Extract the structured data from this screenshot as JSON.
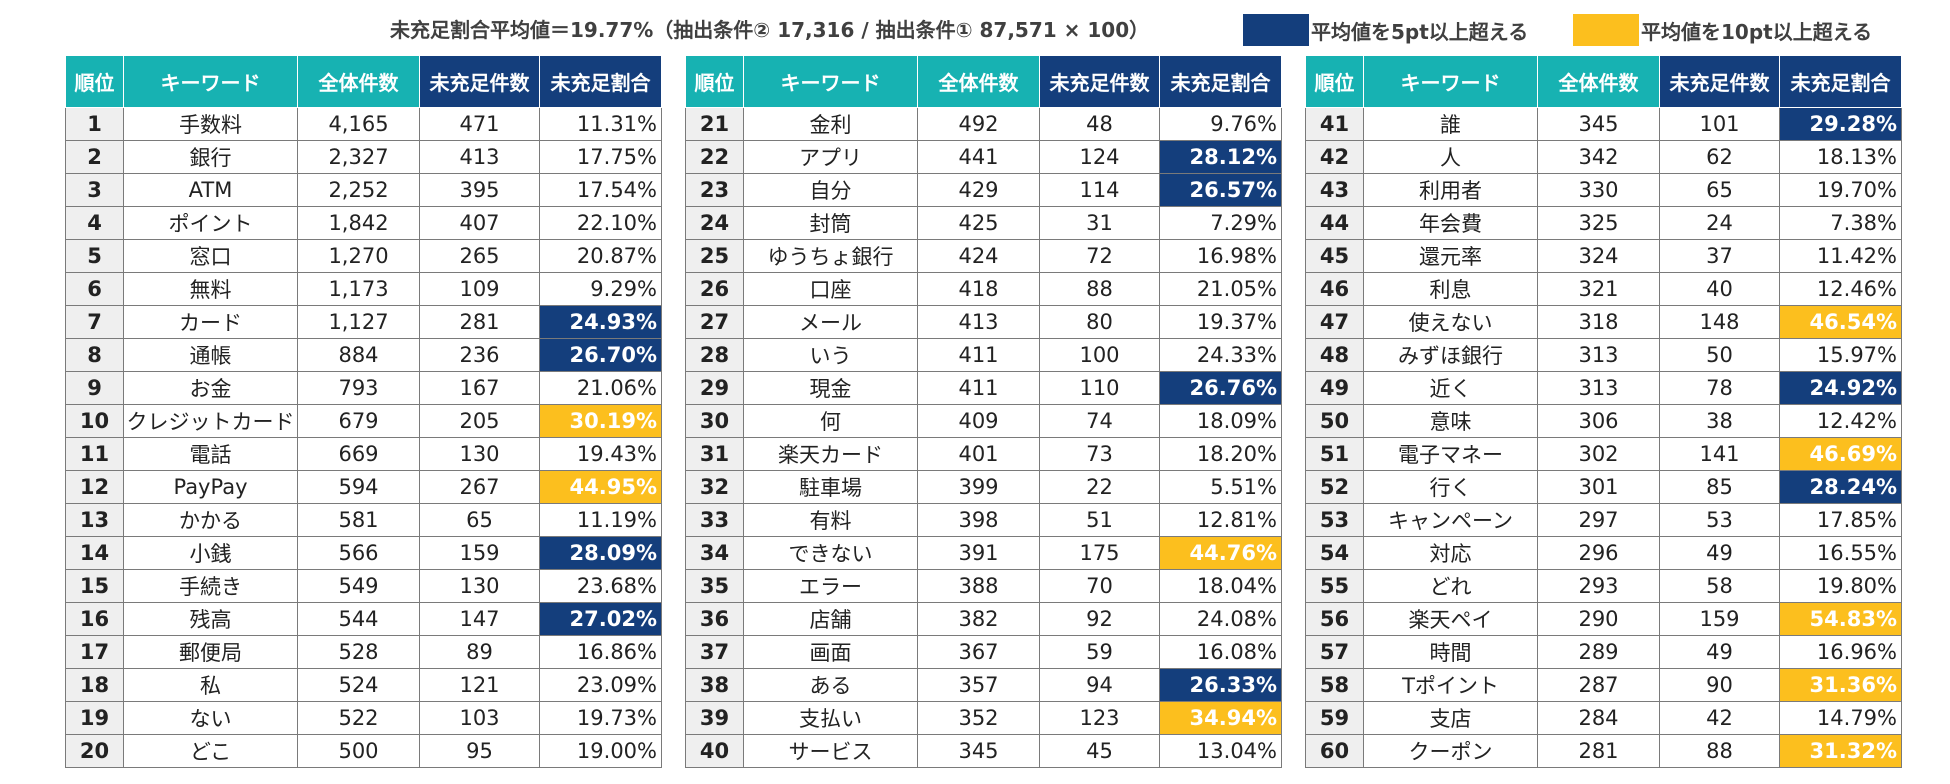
{
  "header": {
    "average_text": "未充足割合平均値＝19.77%（抽出条件② 17,316 / 抽出条件① 87,571 × 100）",
    "legend": [
      {
        "label": "平均値を5pt以上超える",
        "color": "#143e7c"
      },
      {
        "label": "平均値を10pt以上超える",
        "color": "#fcbf1e"
      }
    ]
  },
  "columns": [
    "順位",
    "キーワード",
    "全体件数",
    "未充足件数",
    "未充足割合"
  ],
  "colors": {
    "header_teal": "#17b2b2",
    "header_dark": "#143e7c",
    "highlight_5pt": "#143e7c",
    "highlight_10pt": "#fcbf1e",
    "rank_bg": "#efefef"
  },
  "tables": [
    {
      "rows": [
        {
          "rank": "1",
          "keyword": "手数料",
          "total": "4,165",
          "unmet": "471",
          "ratio": "11.31%",
          "hl": ""
        },
        {
          "rank": "2",
          "keyword": "銀行",
          "total": "2,327",
          "unmet": "413",
          "ratio": "17.75%",
          "hl": ""
        },
        {
          "rank": "3",
          "keyword": "ATM",
          "total": "2,252",
          "unmet": "395",
          "ratio": "17.54%",
          "hl": ""
        },
        {
          "rank": "4",
          "keyword": "ポイント",
          "total": "1,842",
          "unmet": "407",
          "ratio": "22.10%",
          "hl": ""
        },
        {
          "rank": "5",
          "keyword": "窓口",
          "total": "1,270",
          "unmet": "265",
          "ratio": "20.87%",
          "hl": ""
        },
        {
          "rank": "6",
          "keyword": "無料",
          "total": "1,173",
          "unmet": "109",
          "ratio": "9.29%",
          "hl": ""
        },
        {
          "rank": "7",
          "keyword": "カード",
          "total": "1,127",
          "unmet": "281",
          "ratio": "24.93%",
          "hl": "blue"
        },
        {
          "rank": "8",
          "keyword": "通帳",
          "total": "884",
          "unmet": "236",
          "ratio": "26.70%",
          "hl": "blue"
        },
        {
          "rank": "9",
          "keyword": "お金",
          "total": "793",
          "unmet": "167",
          "ratio": "21.06%",
          "hl": ""
        },
        {
          "rank": "10",
          "keyword": "クレジットカード",
          "total": "679",
          "unmet": "205",
          "ratio": "30.19%",
          "hl": "yellow"
        },
        {
          "rank": "11",
          "keyword": "電話",
          "total": "669",
          "unmet": "130",
          "ratio": "19.43%",
          "hl": ""
        },
        {
          "rank": "12",
          "keyword": "PayPay",
          "total": "594",
          "unmet": "267",
          "ratio": "44.95%",
          "hl": "yellow"
        },
        {
          "rank": "13",
          "keyword": "かかる",
          "total": "581",
          "unmet": "65",
          "ratio": "11.19%",
          "hl": ""
        },
        {
          "rank": "14",
          "keyword": "小銭",
          "total": "566",
          "unmet": "159",
          "ratio": "28.09%",
          "hl": "blue"
        },
        {
          "rank": "15",
          "keyword": "手続き",
          "total": "549",
          "unmet": "130",
          "ratio": "23.68%",
          "hl": ""
        },
        {
          "rank": "16",
          "keyword": "残高",
          "total": "544",
          "unmet": "147",
          "ratio": "27.02%",
          "hl": "blue"
        },
        {
          "rank": "17",
          "keyword": "郵便局",
          "total": "528",
          "unmet": "89",
          "ratio": "16.86%",
          "hl": ""
        },
        {
          "rank": "18",
          "keyword": "私",
          "total": "524",
          "unmet": "121",
          "ratio": "23.09%",
          "hl": ""
        },
        {
          "rank": "19",
          "keyword": "ない",
          "total": "522",
          "unmet": "103",
          "ratio": "19.73%",
          "hl": ""
        },
        {
          "rank": "20",
          "keyword": "どこ",
          "total": "500",
          "unmet": "95",
          "ratio": "19.00%",
          "hl": ""
        }
      ]
    },
    {
      "rows": [
        {
          "rank": "21",
          "keyword": "金利",
          "total": "492",
          "unmet": "48",
          "ratio": "9.76%",
          "hl": ""
        },
        {
          "rank": "22",
          "keyword": "アプリ",
          "total": "441",
          "unmet": "124",
          "ratio": "28.12%",
          "hl": "blue"
        },
        {
          "rank": "23",
          "keyword": "自分",
          "total": "429",
          "unmet": "114",
          "ratio": "26.57%",
          "hl": "blue"
        },
        {
          "rank": "24",
          "keyword": "封筒",
          "total": "425",
          "unmet": "31",
          "ratio": "7.29%",
          "hl": ""
        },
        {
          "rank": "25",
          "keyword": "ゆうちょ銀行",
          "total": "424",
          "unmet": "72",
          "ratio": "16.98%",
          "hl": ""
        },
        {
          "rank": "26",
          "keyword": "口座",
          "total": "418",
          "unmet": "88",
          "ratio": "21.05%",
          "hl": ""
        },
        {
          "rank": "27",
          "keyword": "メール",
          "total": "413",
          "unmet": "80",
          "ratio": "19.37%",
          "hl": ""
        },
        {
          "rank": "28",
          "keyword": "いう",
          "total": "411",
          "unmet": "100",
          "ratio": "24.33%",
          "hl": ""
        },
        {
          "rank": "29",
          "keyword": "現金",
          "total": "411",
          "unmet": "110",
          "ratio": "26.76%",
          "hl": "blue"
        },
        {
          "rank": "30",
          "keyword": "何",
          "total": "409",
          "unmet": "74",
          "ratio": "18.09%",
          "hl": ""
        },
        {
          "rank": "31",
          "keyword": "楽天カード",
          "total": "401",
          "unmet": "73",
          "ratio": "18.20%",
          "hl": ""
        },
        {
          "rank": "32",
          "keyword": "駐車場",
          "total": "399",
          "unmet": "22",
          "ratio": "5.51%",
          "hl": ""
        },
        {
          "rank": "33",
          "keyword": "有料",
          "total": "398",
          "unmet": "51",
          "ratio": "12.81%",
          "hl": ""
        },
        {
          "rank": "34",
          "keyword": "できない",
          "total": "391",
          "unmet": "175",
          "ratio": "44.76%",
          "hl": "yellow"
        },
        {
          "rank": "35",
          "keyword": "エラー",
          "total": "388",
          "unmet": "70",
          "ratio": "18.04%",
          "hl": ""
        },
        {
          "rank": "36",
          "keyword": "店舗",
          "total": "382",
          "unmet": "92",
          "ratio": "24.08%",
          "hl": ""
        },
        {
          "rank": "37",
          "keyword": "画面",
          "total": "367",
          "unmet": "59",
          "ratio": "16.08%",
          "hl": ""
        },
        {
          "rank": "38",
          "keyword": "ある",
          "total": "357",
          "unmet": "94",
          "ratio": "26.33%",
          "hl": "blue"
        },
        {
          "rank": "39",
          "keyword": "支払い",
          "total": "352",
          "unmet": "123",
          "ratio": "34.94%",
          "hl": "yellow"
        },
        {
          "rank": "40",
          "keyword": "サービス",
          "total": "345",
          "unmet": "45",
          "ratio": "13.04%",
          "hl": ""
        }
      ]
    },
    {
      "rows": [
        {
          "rank": "41",
          "keyword": "誰",
          "total": "345",
          "unmet": "101",
          "ratio": "29.28%",
          "hl": "blue"
        },
        {
          "rank": "42",
          "keyword": "人",
          "total": "342",
          "unmet": "62",
          "ratio": "18.13%",
          "hl": ""
        },
        {
          "rank": "43",
          "keyword": "利用者",
          "total": "330",
          "unmet": "65",
          "ratio": "19.70%",
          "hl": ""
        },
        {
          "rank": "44",
          "keyword": "年会費",
          "total": "325",
          "unmet": "24",
          "ratio": "7.38%",
          "hl": ""
        },
        {
          "rank": "45",
          "keyword": "還元率",
          "total": "324",
          "unmet": "37",
          "ratio": "11.42%",
          "hl": ""
        },
        {
          "rank": "46",
          "keyword": "利息",
          "total": "321",
          "unmet": "40",
          "ratio": "12.46%",
          "hl": ""
        },
        {
          "rank": "47",
          "keyword": "使えない",
          "total": "318",
          "unmet": "148",
          "ratio": "46.54%",
          "hl": "yellow"
        },
        {
          "rank": "48",
          "keyword": "みずほ銀行",
          "total": "313",
          "unmet": "50",
          "ratio": "15.97%",
          "hl": ""
        },
        {
          "rank": "49",
          "keyword": "近く",
          "total": "313",
          "unmet": "78",
          "ratio": "24.92%",
          "hl": "blue"
        },
        {
          "rank": "50",
          "keyword": "意味",
          "total": "306",
          "unmet": "38",
          "ratio": "12.42%",
          "hl": ""
        },
        {
          "rank": "51",
          "keyword": "電子マネー",
          "total": "302",
          "unmet": "141",
          "ratio": "46.69%",
          "hl": "yellow"
        },
        {
          "rank": "52",
          "keyword": "行く",
          "total": "301",
          "unmet": "85",
          "ratio": "28.24%",
          "hl": "blue"
        },
        {
          "rank": "53",
          "keyword": "キャンペーン",
          "total": "297",
          "unmet": "53",
          "ratio": "17.85%",
          "hl": ""
        },
        {
          "rank": "54",
          "keyword": "対応",
          "total": "296",
          "unmet": "49",
          "ratio": "16.55%",
          "hl": ""
        },
        {
          "rank": "55",
          "keyword": "どれ",
          "total": "293",
          "unmet": "58",
          "ratio": "19.80%",
          "hl": ""
        },
        {
          "rank": "56",
          "keyword": "楽天ペイ",
          "total": "290",
          "unmet": "159",
          "ratio": "54.83%",
          "hl": "yellow"
        },
        {
          "rank": "57",
          "keyword": "時間",
          "total": "289",
          "unmet": "49",
          "ratio": "16.96%",
          "hl": ""
        },
        {
          "rank": "58",
          "keyword": "Tポイント",
          "total": "287",
          "unmet": "90",
          "ratio": "31.36%",
          "hl": "yellow"
        },
        {
          "rank": "59",
          "keyword": "支店",
          "total": "284",
          "unmet": "42",
          "ratio": "14.79%",
          "hl": ""
        },
        {
          "rank": "60",
          "keyword": "クーポン",
          "total": "281",
          "unmet": "88",
          "ratio": "31.32%",
          "hl": "yellow"
        }
      ]
    }
  ]
}
